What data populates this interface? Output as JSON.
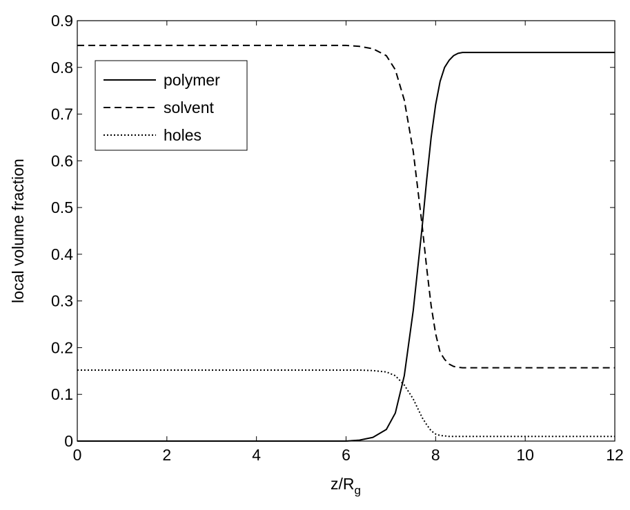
{
  "chart_data": {
    "type": "line",
    "xlabel_main": "z/R",
    "xlabel_sub": "g",
    "ylabel": "local volume fraction",
    "xlim": [
      0,
      12
    ],
    "ylim": [
      0,
      0.9
    ],
    "xticks": [
      "0",
      "2",
      "4",
      "6",
      "8",
      "10",
      "12"
    ],
    "yticks": [
      "0",
      "0.1",
      "0.2",
      "0.3",
      "0.4",
      "0.5",
      "0.6",
      "0.7",
      "0.8",
      "0.9"
    ],
    "grid": false,
    "legend_position": "top-left",
    "series": [
      {
        "name": "polymer",
        "style": "solid",
        "color": "#000000",
        "x": [
          0,
          6.0,
          6.3,
          6.6,
          6.9,
          7.1,
          7.3,
          7.5,
          7.6,
          7.7,
          7.8,
          7.9,
          8.0,
          8.1,
          8.2,
          8.3,
          8.4,
          8.5,
          8.6,
          9.0,
          12.0
        ],
        "y": [
          0,
          0,
          0.002,
          0.008,
          0.025,
          0.06,
          0.14,
          0.28,
          0.37,
          0.46,
          0.56,
          0.65,
          0.72,
          0.77,
          0.8,
          0.815,
          0.825,
          0.83,
          0.832,
          0.832,
          0.832
        ]
      },
      {
        "name": "solvent",
        "style": "dashed",
        "color": "#000000",
        "x": [
          0,
          6.0,
          6.3,
          6.6,
          6.9,
          7.1,
          7.3,
          7.5,
          7.6,
          7.7,
          7.8,
          7.9,
          8.0,
          8.1,
          8.2,
          8.3,
          8.4,
          8.5,
          8.6,
          9.0,
          12.0
        ],
        "y": [
          0.847,
          0.847,
          0.845,
          0.84,
          0.825,
          0.795,
          0.73,
          0.62,
          0.54,
          0.46,
          0.37,
          0.29,
          0.23,
          0.19,
          0.175,
          0.165,
          0.16,
          0.158,
          0.157,
          0.157,
          0.157
        ]
      },
      {
        "name": "holes",
        "style": "dotted",
        "color": "#000000",
        "x": [
          0,
          6.0,
          6.3,
          6.6,
          6.9,
          7.1,
          7.3,
          7.5,
          7.6,
          7.7,
          7.8,
          7.9,
          8.0,
          8.1,
          8.2,
          8.3,
          8.5,
          9.0,
          12.0
        ],
        "y": [
          0.152,
          0.152,
          0.152,
          0.151,
          0.148,
          0.14,
          0.12,
          0.09,
          0.07,
          0.05,
          0.035,
          0.022,
          0.015,
          0.012,
          0.011,
          0.01,
          0.01,
          0.01,
          0.01
        ]
      }
    ]
  }
}
